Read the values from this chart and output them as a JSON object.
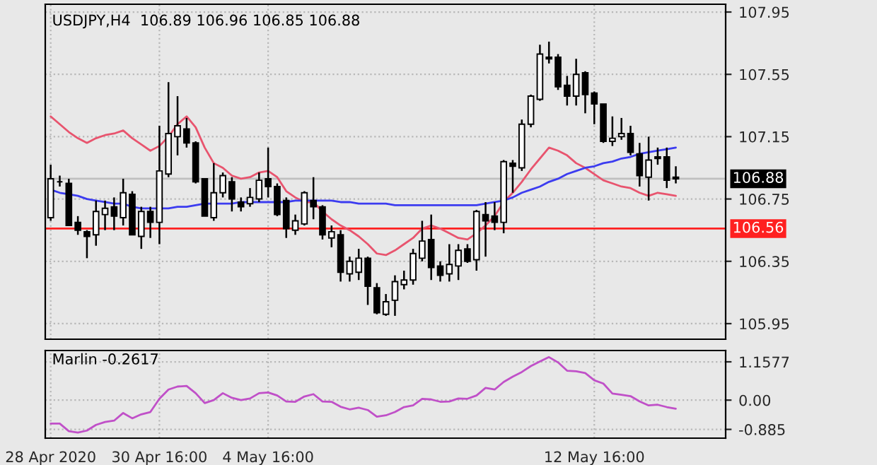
{
  "chart_data": [
    {
      "type": "candlestick",
      "title": "USDJPY,H4  106.89 106.96 106.85 106.88",
      "categories": [
        null,
        null,
        null,
        null,
        null,
        null,
        null,
        null,
        null,
        null,
        null,
        null,
        null,
        null,
        null,
        null,
        null,
        null,
        null,
        null,
        null,
        null,
        null,
        null,
        null,
        null,
        null,
        null,
        null,
        null,
        null,
        null,
        null,
        null,
        null,
        null,
        null,
        null,
        null,
        null,
        null,
        null,
        null,
        null,
        null,
        null,
        null,
        null,
        null,
        null,
        null,
        null,
        null,
        null,
        null,
        null,
        null,
        null,
        null,
        null,
        null,
        null,
        null,
        null,
        null,
        null,
        null,
        null,
        null,
        null
      ],
      "ohlc": [
        [
          106.63,
          106.97,
          106.61,
          106.88
        ],
        [
          106.86,
          106.9,
          106.83,
          106.86
        ],
        [
          106.85,
          106.88,
          106.58,
          106.58
        ],
        [
          106.6,
          106.64,
          106.52,
          106.55
        ],
        [
          106.54,
          106.55,
          106.37,
          106.51
        ],
        [
          106.52,
          106.74,
          106.45,
          106.67
        ],
        [
          106.65,
          106.74,
          106.55,
          106.69
        ],
        [
          106.7,
          106.76,
          106.55,
          106.64
        ],
        [
          106.63,
          106.88,
          106.58,
          106.79
        ],
        [
          106.78,
          106.8,
          106.52,
          106.52
        ],
        [
          106.51,
          106.7,
          106.43,
          106.67
        ],
        [
          106.67,
          106.7,
          106.5,
          106.6
        ],
        [
          106.6,
          107.22,
          106.46,
          106.93
        ],
        [
          106.91,
          107.5,
          106.89,
          107.17
        ],
        [
          107.15,
          107.41,
          107.03,
          107.22
        ],
        [
          107.2,
          107.27,
          107.08,
          107.11
        ],
        [
          107.11,
          107.12,
          106.85,
          106.86
        ],
        [
          106.88,
          106.88,
          106.64,
          106.64
        ],
        [
          106.63,
          106.98,
          106.61,
          106.79
        ],
        [
          106.79,
          106.92,
          106.76,
          106.9
        ],
        [
          106.86,
          106.89,
          106.67,
          106.75
        ],
        [
          106.73,
          106.76,
          106.67,
          106.7
        ],
        [
          106.72,
          106.82,
          106.7,
          106.76
        ],
        [
          106.75,
          106.92,
          106.73,
          106.87
        ],
        [
          106.88,
          107.08,
          106.76,
          106.83
        ],
        [
          106.83,
          106.85,
          106.64,
          106.65
        ],
        [
          106.74,
          106.76,
          106.5,
          106.56
        ],
        [
          106.55,
          106.65,
          106.52,
          106.61
        ],
        [
          106.59,
          106.8,
          106.58,
          106.79
        ],
        [
          106.74,
          106.89,
          106.62,
          106.7
        ],
        [
          106.7,
          106.71,
          106.49,
          106.52
        ],
        [
          106.5,
          106.58,
          106.44,
          106.54
        ],
        [
          106.52,
          106.55,
          106.22,
          106.28
        ],
        [
          106.27,
          106.38,
          106.22,
          106.35
        ],
        [
          106.28,
          106.43,
          106.23,
          106.37
        ],
        [
          106.37,
          106.38,
          106.07,
          106.19
        ],
        [
          106.18,
          106.21,
          106.01,
          106.02
        ],
        [
          106.01,
          106.14,
          106.0,
          106.09
        ],
        [
          106.1,
          106.26,
          106.0,
          106.22
        ],
        [
          106.2,
          106.29,
          106.17,
          106.23
        ],
        [
          106.23,
          106.43,
          106.2,
          106.4
        ],
        [
          106.37,
          106.61,
          106.35,
          106.48
        ],
        [
          106.49,
          106.65,
          106.23,
          106.31
        ],
        [
          106.32,
          106.35,
          106.22,
          106.26
        ],
        [
          106.27,
          106.46,
          106.22,
          106.33
        ],
        [
          106.32,
          106.46,
          106.23,
          106.42
        ],
        [
          106.43,
          106.46,
          106.34,
          106.35
        ],
        [
          106.36,
          106.68,
          106.29,
          106.67
        ],
        [
          106.65,
          106.73,
          106.38,
          106.61
        ],
        [
          106.64,
          106.73,
          106.55,
          106.6
        ],
        [
          106.6,
          107.0,
          106.53,
          106.99
        ],
        [
          106.98,
          107.0,
          106.79,
          106.96
        ],
        [
          106.95,
          107.26,
          106.93,
          107.23
        ],
        [
          107.23,
          107.42,
          107.21,
          107.41
        ],
        [
          107.39,
          107.74,
          107.38,
          107.68
        ],
        [
          107.66,
          107.76,
          107.62,
          107.65
        ],
        [
          107.66,
          107.68,
          107.45,
          107.47
        ],
        [
          107.48,
          107.54,
          107.35,
          107.41
        ],
        [
          107.41,
          107.65,
          107.35,
          107.55
        ],
        [
          107.56,
          107.57,
          107.3,
          107.42
        ],
        [
          107.43,
          107.44,
          107.23,
          107.36
        ],
        [
          107.36,
          107.36,
          107.11,
          107.12
        ],
        [
          107.12,
          107.28,
          107.09,
          107.14
        ],
        [
          107.15,
          107.27,
          107.13,
          107.17
        ],
        [
          107.17,
          107.22,
          107.03,
          107.05
        ],
        [
          107.04,
          107.11,
          106.83,
          106.9
        ],
        [
          106.89,
          107.15,
          106.74,
          107.0
        ],
        [
          107.02,
          107.08,
          106.97,
          107.01
        ],
        [
          107.02,
          107.08,
          106.82,
          106.87
        ],
        [
          106.89,
          106.96,
          106.85,
          106.88
        ]
      ],
      "series": [
        {
          "type": "line",
          "color": "#e8546e",
          "values": [
            107.28,
            107.23,
            107.18,
            107.14,
            107.11,
            107.14,
            107.16,
            107.17,
            107.19,
            107.14,
            107.1,
            107.06,
            107.09,
            107.15,
            107.23,
            107.28,
            107.21,
            107.08,
            106.98,
            106.95,
            106.9,
            106.88,
            106.89,
            106.92,
            106.93,
            106.89,
            106.8,
            106.76,
            106.73,
            106.73,
            106.67,
            106.62,
            106.58,
            106.55,
            106.51,
            106.46,
            106.4,
            106.39,
            106.42,
            106.46,
            106.5,
            106.56,
            106.58,
            106.56,
            106.53,
            106.5,
            106.49,
            106.53,
            106.58,
            106.64,
            106.73,
            106.79,
            106.86,
            106.94,
            107.01,
            107.08,
            107.06,
            107.03,
            106.98,
            106.95,
            106.91,
            106.87,
            106.85,
            106.83,
            106.82,
            106.79,
            106.77,
            106.79,
            106.78,
            106.77
          ]
        },
        {
          "type": "line",
          "color": "#3c3cf0",
          "values": [
            106.81,
            106.79,
            106.78,
            106.77,
            106.75,
            106.74,
            106.73,
            106.72,
            106.72,
            106.7,
            106.69,
            106.69,
            106.69,
            106.69,
            106.7,
            106.7,
            106.71,
            106.72,
            106.72,
            106.72,
            106.72,
            106.73,
            106.73,
            106.73,
            106.73,
            106.73,
            106.73,
            106.74,
            106.74,
            106.74,
            106.74,
            106.74,
            106.73,
            106.73,
            106.72,
            106.72,
            106.72,
            106.72,
            106.71,
            106.71,
            106.71,
            106.71,
            106.71,
            106.71,
            106.71,
            106.71,
            106.71,
            106.71,
            106.72,
            106.73,
            106.74,
            106.76,
            106.79,
            106.81,
            106.83,
            106.86,
            106.88,
            106.91,
            106.93,
            106.95,
            106.96,
            106.98,
            106.99,
            107.01,
            107.02,
            107.04,
            107.05,
            107.06,
            107.07,
            107.08
          ]
        }
      ],
      "ylim": [
        105.85,
        108.0
      ],
      "yticks": [
        107.95,
        107.55,
        107.15,
        106.75,
        106.35,
        105.95
      ],
      "ref_lines": [
        {
          "axis": "y",
          "value": 106.88,
          "label": "106.88",
          "color": "#c0c0c0"
        },
        {
          "axis": "y",
          "value": 106.56,
          "label": "106.56",
          "color": "#ff2020"
        }
      ],
      "grid": true,
      "tick_labels": "y"
    },
    {
      "type": "line",
      "title": "Marlin -0.2617",
      "categories": [
        "28 Apr 2020",
        null,
        null,
        null,
        null,
        null,
        null,
        null,
        null,
        null,
        null,
        null,
        "30 Apr 16:00",
        null,
        null,
        null,
        null,
        null,
        null,
        null,
        null,
        null,
        null,
        null,
        "4 May 16:00",
        null,
        null,
        null,
        null,
        null,
        null,
        null,
        null,
        null,
        null,
        null,
        null,
        null,
        null,
        null,
        null,
        null,
        null,
        null,
        null,
        null,
        null,
        null,
        null,
        null,
        null,
        null,
        null,
        null,
        null,
        null,
        null,
        null,
        null,
        null,
        "12 May 16:00",
        null,
        null,
        null,
        null,
        null,
        null,
        null,
        null,
        null
      ],
      "series": [
        {
          "color": "#c050c8",
          "values": [
            -0.71,
            -0.71,
            -0.94,
            -0.98,
            -0.92,
            -0.75,
            -0.66,
            -0.62,
            -0.39,
            -0.55,
            -0.43,
            -0.36,
            0.04,
            0.32,
            0.41,
            0.43,
            0.21,
            -0.09,
            0.0,
            0.21,
            0.07,
            0.0,
            0.05,
            0.21,
            0.23,
            0.14,
            -0.04,
            -0.05,
            0.11,
            0.18,
            -0.04,
            -0.05,
            -0.2,
            -0.28,
            -0.23,
            -0.3,
            -0.5,
            -0.46,
            -0.36,
            -0.21,
            -0.16,
            0.04,
            0.02,
            -0.05,
            -0.04,
            0.05,
            0.04,
            0.14,
            0.37,
            0.32,
            0.55,
            0.71,
            0.85,
            1.03,
            1.17,
            1.3,
            1.14,
            0.89,
            0.87,
            0.82,
            0.6,
            0.5,
            0.2,
            0.16,
            0.12,
            -0.04,
            -0.16,
            -0.14,
            -0.21,
            -0.26
          ]
        }
      ],
      "ylim": [
        -1.15,
        1.5
      ],
      "yticks": [
        1.1577,
        {
          "value": 0,
          "label": "0.00"
        },
        -0.885
      ],
      "grid": true
    }
  ]
}
